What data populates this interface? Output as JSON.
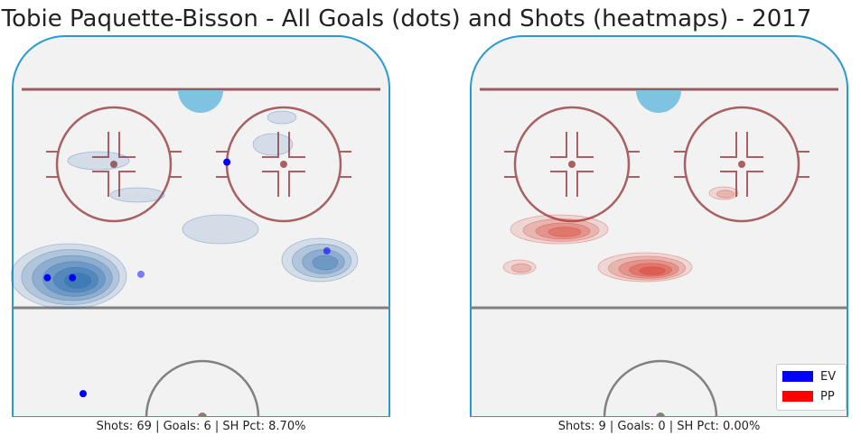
{
  "title": "Tobie Paquette-Bisson - All Goals (dots) and Shots (heatmaps) - 2017",
  "colors": {
    "rink_bg": "#f2f2f2",
    "boards": "#2a9bd0",
    "goal_line": "#9b5a5f",
    "crease": "#7ec3e1",
    "circle": "#a86062",
    "blue_line": "#808080",
    "ev": "#0000ff",
    "pp": "#ff0000"
  },
  "legend": [
    {
      "label": "EV",
      "color": "#0000ff"
    },
    {
      "label": "PP",
      "color": "#ff0000"
    }
  ],
  "chart_data": [
    {
      "type": "heatmap",
      "panel": "EV",
      "caption": "Shots: 69 | Goals: 6 | SH Pct: 8.70%",
      "heatmap_color": "#2166ac",
      "kde_clusters": [
        {
          "x": 0.15,
          "y": 0.63,
          "levels": 6
        },
        {
          "x": 0.78,
          "y": 0.59,
          "levels": 4
        },
        {
          "x": 0.55,
          "y": 0.51,
          "levels": 1
        },
        {
          "x": 0.69,
          "y": 0.29,
          "levels": 1
        },
        {
          "x": 0.23,
          "y": 0.33,
          "levels": 1
        },
        {
          "x": 0.33,
          "y": 0.42,
          "levels": 1
        },
        {
          "x": 0.72,
          "y": 0.21,
          "levels": 1
        }
      ],
      "goals": [
        {
          "x": 0.096,
          "y": 0.636,
          "alpha": 1.0
        },
        {
          "x": 0.162,
          "y": 0.636,
          "alpha": 1.0
        },
        {
          "x": 0.342,
          "y": 0.627,
          "alpha": 0.5
        },
        {
          "x": 0.831,
          "y": 0.566,
          "alpha": 0.6
        },
        {
          "x": 0.568,
          "y": 0.334,
          "alpha": 1.0
        },
        {
          "x": 0.19,
          "y": 0.939,
          "alpha": 1.0
        }
      ]
    },
    {
      "type": "heatmap",
      "panel": "PP",
      "caption": "Shots: 9 | Goals: 0 | SH Pct: 0.00%",
      "heatmap_color": "#d7301f",
      "kde_clusters": [
        {
          "x": 0.24,
          "y": 0.51,
          "levels": 4
        },
        {
          "x": 0.46,
          "y": 0.61,
          "levels": 5
        },
        {
          "x": 0.13,
          "y": 0.61,
          "levels": 2
        },
        {
          "x": 0.67,
          "y": 0.41,
          "levels": 2
        }
      ],
      "goals": []
    }
  ]
}
